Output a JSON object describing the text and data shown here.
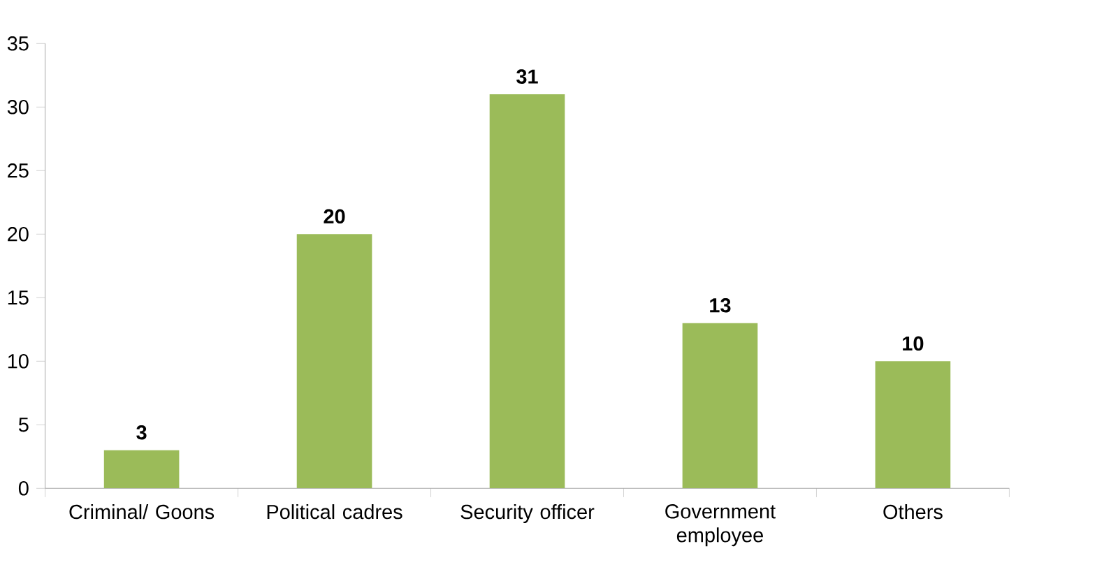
{
  "chart_data": {
    "type": "bar",
    "categories": [
      "Criminal/ Goons",
      "Political cadres",
      "Security officer",
      "Government employee",
      "Others"
    ],
    "values": [
      3,
      20,
      31,
      13,
      10
    ],
    "color": "#9bbb59",
    "ylim": [
      0,
      35
    ],
    "yticks": [
      0,
      5,
      10,
      15,
      20,
      25,
      30,
      35
    ],
    "data_labels": true
  }
}
